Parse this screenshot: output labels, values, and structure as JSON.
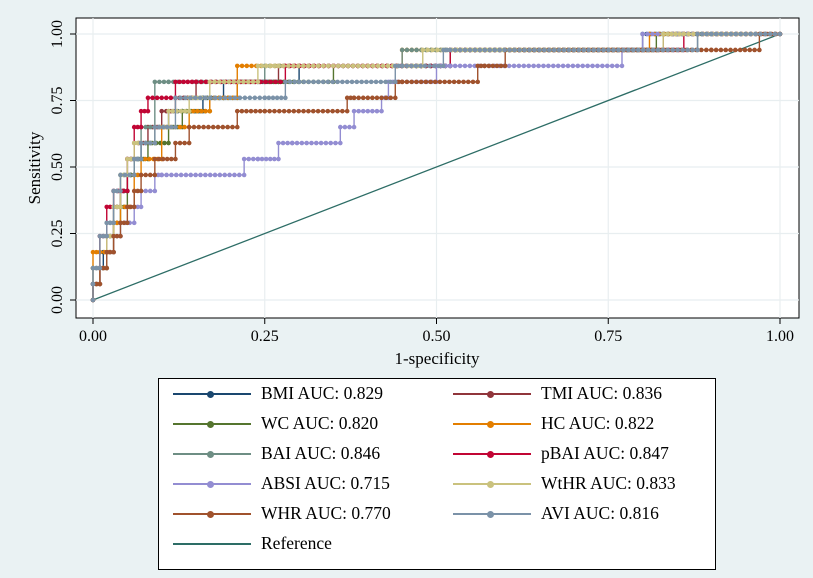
{
  "chart_data": {
    "type": "line",
    "title": "",
    "xlabel": "1-specificity",
    "ylabel": "Sensitivity",
    "xlim": [
      0,
      1
    ],
    "ylim": [
      0,
      1
    ],
    "xticks": [
      "0.00",
      "0.25",
      "0.50",
      "0.75",
      "1.00"
    ],
    "yticks": [
      "0.00",
      "0.25",
      "0.50",
      "0.75",
      "1.00"
    ],
    "grid": true,
    "legend_position": "bottom",
    "series": [
      {
        "name": "BMI",
        "label": "BMI AUC: 0.829",
        "color": "#1a476f",
        "points": [
          [
            0,
            0
          ],
          [
            0.01,
            0.06
          ],
          [
            0.015,
            0.12
          ],
          [
            0.02,
            0.18
          ],
          [
            0.03,
            0.24
          ],
          [
            0.04,
            0.35
          ],
          [
            0.05,
            0.41
          ],
          [
            0.06,
            0.47
          ],
          [
            0.07,
            0.53
          ],
          [
            0.09,
            0.59
          ],
          [
            0.11,
            0.65
          ],
          [
            0.13,
            0.71
          ],
          [
            0.16,
            0.71
          ],
          [
            0.19,
            0.76
          ],
          [
            0.24,
            0.82
          ],
          [
            0.3,
            0.82
          ],
          [
            0.45,
            0.88
          ],
          [
            0.52,
            0.88
          ],
          [
            0.52,
            0.94
          ],
          [
            0.8,
            0.94
          ],
          [
            0.83,
            1.0
          ],
          [
            1,
            1
          ]
        ]
      },
      {
        "name": "TMI",
        "label": "TMI AUC: 0.836",
        "color": "#90353b",
        "points": [
          [
            0,
            0
          ],
          [
            0.01,
            0.06
          ],
          [
            0.02,
            0.12
          ],
          [
            0.03,
            0.24
          ],
          [
            0.04,
            0.35
          ],
          [
            0.05,
            0.41
          ],
          [
            0.06,
            0.53
          ],
          [
            0.08,
            0.59
          ],
          [
            0.1,
            0.65
          ],
          [
            0.12,
            0.71
          ],
          [
            0.15,
            0.76
          ],
          [
            0.2,
            0.82
          ],
          [
            0.27,
            0.82
          ],
          [
            0.35,
            0.88
          ],
          [
            0.52,
            0.88
          ],
          [
            0.52,
            0.94
          ],
          [
            0.83,
            0.94
          ],
          [
            0.86,
            1.0
          ],
          [
            1,
            1
          ]
        ]
      },
      {
        "name": "WC",
        "label": "WC AUC: 0.820",
        "color": "#55752f",
        "points": [
          [
            0,
            0
          ],
          [
            0.01,
            0.06
          ],
          [
            0.02,
            0.12
          ],
          [
            0.03,
            0.18
          ],
          [
            0.04,
            0.29
          ],
          [
            0.05,
            0.35
          ],
          [
            0.06,
            0.47
          ],
          [
            0.08,
            0.53
          ],
          [
            0.11,
            0.59
          ],
          [
            0.13,
            0.65
          ],
          [
            0.17,
            0.71
          ],
          [
            0.21,
            0.76
          ],
          [
            0.27,
            0.82
          ],
          [
            0.35,
            0.82
          ],
          [
            0.45,
            0.88
          ],
          [
            0.52,
            0.88
          ],
          [
            0.52,
            0.94
          ],
          [
            0.82,
            0.94
          ],
          [
            0.85,
            1.0
          ],
          [
            1,
            1
          ]
        ]
      },
      {
        "name": "HC",
        "label": "HC AUC: 0.822",
        "color": "#e37e00",
        "points": [
          [
            0,
            0
          ],
          [
            0,
            0.12
          ],
          [
            0.01,
            0.18
          ],
          [
            0.03,
            0.18
          ],
          [
            0.04,
            0.29
          ],
          [
            0.06,
            0.35
          ],
          [
            0.07,
            0.47
          ],
          [
            0.1,
            0.53
          ],
          [
            0.14,
            0.65
          ],
          [
            0.17,
            0.71
          ],
          [
            0.21,
            0.76
          ],
          [
            0.3,
            0.88
          ],
          [
            0.45,
            0.88
          ],
          [
            0.52,
            0.94
          ],
          [
            0.81,
            0.94
          ],
          [
            0.81,
            1.0
          ],
          [
            1,
            1
          ]
        ]
      },
      {
        "name": "BAI",
        "label": "BAI AUC: 0.846",
        "color": "#6e8e84",
        "points": [
          [
            0,
            0
          ],
          [
            0,
            0.06
          ],
          [
            0.01,
            0.12
          ],
          [
            0.02,
            0.24
          ],
          [
            0.03,
            0.29
          ],
          [
            0.04,
            0.41
          ],
          [
            0.05,
            0.47
          ],
          [
            0.07,
            0.53
          ],
          [
            0.09,
            0.65
          ],
          [
            0.11,
            0.82
          ],
          [
            0.25,
            0.82
          ],
          [
            0.45,
            0.88
          ],
          [
            0.52,
            0.94
          ],
          [
            0.88,
            0.94
          ],
          [
            0.9,
            1.0
          ],
          [
            1,
            1
          ]
        ]
      },
      {
        "name": "pBAI",
        "label": "pBAI AUC: 0.847",
        "color": "#c10534",
        "points": [
          [
            0,
            0
          ],
          [
            0.01,
            0.06
          ],
          [
            0.01,
            0.12
          ],
          [
            0.02,
            0.24
          ],
          [
            0.03,
            0.35
          ],
          [
            0.05,
            0.41
          ],
          [
            0.06,
            0.53
          ],
          [
            0.07,
            0.65
          ],
          [
            0.08,
            0.71
          ],
          [
            0.12,
            0.76
          ],
          [
            0.15,
            0.82
          ],
          [
            0.28,
            0.82
          ],
          [
            0.35,
            0.88
          ],
          [
            0.52,
            0.88
          ],
          [
            0.52,
            0.94
          ],
          [
            0.86,
            0.94
          ],
          [
            0.86,
            1.0
          ],
          [
            1,
            1
          ]
        ]
      },
      {
        "name": "ABSI",
        "label": "ABSI AUC: 0.715",
        "color": "#938dd2",
        "points": [
          [
            0,
            0
          ],
          [
            0.01,
            0.06
          ],
          [
            0.02,
            0.12
          ],
          [
            0.03,
            0.18
          ],
          [
            0.04,
            0.24
          ],
          [
            0.06,
            0.29
          ],
          [
            0.07,
            0.35
          ],
          [
            0.09,
            0.41
          ],
          [
            0.1,
            0.47
          ],
          [
            0.22,
            0.47
          ],
          [
            0.24,
            0.53
          ],
          [
            0.27,
            0.53
          ],
          [
            0.29,
            0.59
          ],
          [
            0.36,
            0.59
          ],
          [
            0.38,
            0.65
          ],
          [
            0.42,
            0.71
          ],
          [
            0.43,
            0.76
          ],
          [
            0.45,
            0.82
          ],
          [
            0.5,
            0.82
          ],
          [
            0.52,
            0.88
          ],
          [
            0.77,
            0.88
          ],
          [
            0.8,
            0.94
          ],
          [
            0.88,
            1.0
          ],
          [
            1,
            1
          ]
        ]
      },
      {
        "name": "WtHR",
        "label": "WtHR AUC: 0.833",
        "color": "#cac27e",
        "points": [
          [
            0,
            0
          ],
          [
            0.01,
            0.06
          ],
          [
            0.02,
            0.12
          ],
          [
            0.03,
            0.24
          ],
          [
            0.04,
            0.35
          ],
          [
            0.05,
            0.47
          ],
          [
            0.06,
            0.53
          ],
          [
            0.07,
            0.59
          ],
          [
            0.09,
            0.59
          ],
          [
            0.11,
            0.65
          ],
          [
            0.14,
            0.71
          ],
          [
            0.17,
            0.76
          ],
          [
            0.24,
            0.82
          ],
          [
            0.27,
            0.88
          ],
          [
            0.48,
            0.88
          ],
          [
            0.53,
            0.94
          ],
          [
            0.83,
            0.94
          ],
          [
            0.86,
            1.0
          ],
          [
            1,
            1
          ]
        ]
      },
      {
        "name": "WHR",
        "label": "WHR AUC: 0.770",
        "color": "#a0522d",
        "points": [
          [
            0,
            0
          ],
          [
            0.01,
            0.06
          ],
          [
            0.02,
            0.12
          ],
          [
            0.03,
            0.18
          ],
          [
            0.04,
            0.24
          ],
          [
            0.05,
            0.29
          ],
          [
            0.06,
            0.35
          ],
          [
            0.07,
            0.41
          ],
          [
            0.09,
            0.47
          ],
          [
            0.12,
            0.53
          ],
          [
            0.14,
            0.59
          ],
          [
            0.21,
            0.65
          ],
          [
            0.25,
            0.71
          ],
          [
            0.37,
            0.71
          ],
          [
            0.38,
            0.76
          ],
          [
            0.44,
            0.76
          ],
          [
            0.45,
            0.82
          ],
          [
            0.56,
            0.82
          ],
          [
            0.57,
            0.88
          ],
          [
            0.6,
            0.88
          ],
          [
            0.62,
            0.94
          ],
          [
            0.82,
            0.94
          ],
          [
            0.9,
            0.94
          ],
          [
            0.97,
            0.94
          ],
          [
            1,
            1
          ]
        ]
      },
      {
        "name": "AVI",
        "label": "AVI AUC: 0.816",
        "color": "#7b92a8",
        "points": [
          [
            0,
            0
          ],
          [
            0,
            0.06
          ],
          [
            0.01,
            0.12
          ],
          [
            0.02,
            0.24
          ],
          [
            0.03,
            0.29
          ],
          [
            0.04,
            0.41
          ],
          [
            0.06,
            0.47
          ],
          [
            0.07,
            0.53
          ],
          [
            0.09,
            0.59
          ],
          [
            0.12,
            0.65
          ],
          [
            0.25,
            0.76
          ],
          [
            0.28,
            0.76
          ],
          [
            0.3,
            0.82
          ],
          [
            0.44,
            0.82
          ],
          [
            0.45,
            0.88
          ],
          [
            0.51,
            0.88
          ],
          [
            0.52,
            0.94
          ],
          [
            0.88,
            0.94
          ],
          [
            0.9,
            1.0
          ],
          [
            1,
            1
          ]
        ]
      },
      {
        "name": "Reference",
        "label": "Reference",
        "color": "#2d6d66",
        "reference": true,
        "points": [
          [
            0,
            0
          ],
          [
            1,
            1
          ]
        ]
      }
    ]
  }
}
